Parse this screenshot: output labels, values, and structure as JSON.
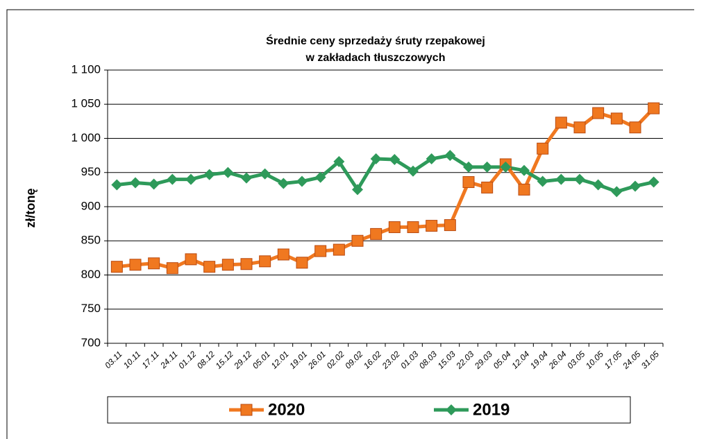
{
  "chart_data": {
    "type": "line",
    "title": [
      "Średnie ceny sprzedaży śruty rzepakowej",
      "w zakładach tłuszczowych"
    ],
    "y_label": "zł/tonę",
    "categories": [
      "03.11",
      "10.11",
      "17.11",
      "24.11",
      "01.12",
      "08.12",
      "15.12",
      "29.12",
      "05.01",
      "12.01",
      "19.01",
      "26.01",
      "02.02",
      "09.02",
      "16.02",
      "23.02",
      "01.03",
      "08.03",
      "15.03",
      "22.03",
      "29.03",
      "05.04",
      "12.04",
      "19.04",
      "26.04",
      "03.05",
      "10.05",
      "17.05",
      "24.05",
      "31.05"
    ],
    "series": [
      {
        "name": "2020",
        "color": "#f07820",
        "marker": "square",
        "values": [
          812,
          815,
          817,
          810,
          823,
          812,
          815,
          816,
          820,
          830,
          818,
          835,
          837,
          850,
          860,
          870,
          870,
          872,
          873,
          936,
          928,
          962,
          925,
          985,
          1023,
          1016,
          1037,
          1029,
          1016,
          1044
        ]
      },
      {
        "name": "2019",
        "color": "#2e9a5a",
        "marker": "diamond",
        "values": [
          932,
          935,
          933,
          940,
          940,
          947,
          950,
          942,
          948,
          934,
          937,
          943,
          966,
          925,
          970,
          969,
          952,
          970,
          975,
          958,
          958,
          958,
          953,
          937,
          940,
          940,
          932,
          922,
          930,
          936
        ]
      }
    ],
    "ylim": [
      700,
      1100
    ],
    "yticks": [
      700,
      750,
      800,
      850,
      900,
      950,
      {
        "value": 1000,
        "label": "1 000"
      },
      {
        "value": 1050,
        "label": "1 050"
      },
      {
        "value": 1100,
        "label": "1 100"
      }
    ],
    "grid": true,
    "legend": "bottom"
  }
}
